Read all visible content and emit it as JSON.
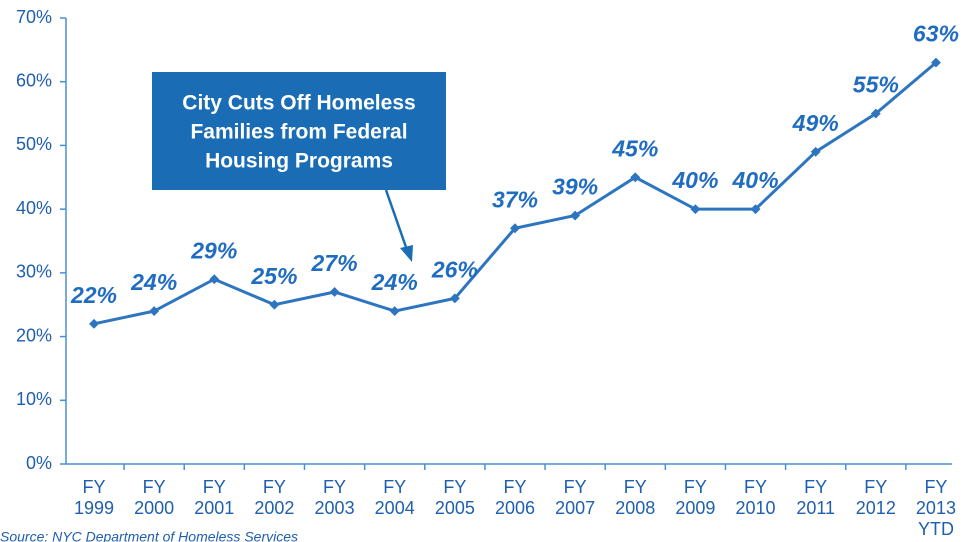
{
  "chart_data": {
    "type": "line",
    "categories": [
      "FY 1999",
      "FY 2000",
      "FY 2001",
      "FY 2002",
      "FY 2003",
      "FY 2004",
      "FY 2005",
      "FY 2006",
      "FY 2007",
      "FY 2008",
      "FY 2009",
      "FY 2010",
      "FY 2011",
      "FY 2012",
      "FY 2013 YTD"
    ],
    "series": [
      {
        "color": "#2e75c0",
        "values": [
          22,
          24,
          29,
          25,
          27,
          24,
          26,
          37,
          39,
          45,
          40,
          40,
          49,
          55,
          63
        ],
        "value_labels": [
          "22%",
          "24%",
          "29%",
          "25%",
          "27%",
          "24%",
          "26%",
          "37%",
          "39%",
          "45%",
          "40%",
          "40%",
          "49%",
          "55%",
          "63%"
        ]
      }
    ],
    "ylim": [
      0,
      70
    ],
    "yticks": [
      {
        "value": 0,
        "label": "0%"
      },
      {
        "value": 10,
        "label": "10%"
      },
      {
        "value": 20,
        "label": "20%"
      },
      {
        "value": 30,
        "label": "30%"
      },
      {
        "value": 40,
        "label": "40%"
      },
      {
        "value": 50,
        "label": "50%"
      },
      {
        "value": 60,
        "label": "60%"
      },
      {
        "value": 70,
        "label": "70%"
      }
    ],
    "annotation": [
      "City Cuts Off Homeless",
      "Families from Federal",
      "Housing Programs"
    ],
    "source": "Source:  NYC Department of Homeless Services"
  }
}
